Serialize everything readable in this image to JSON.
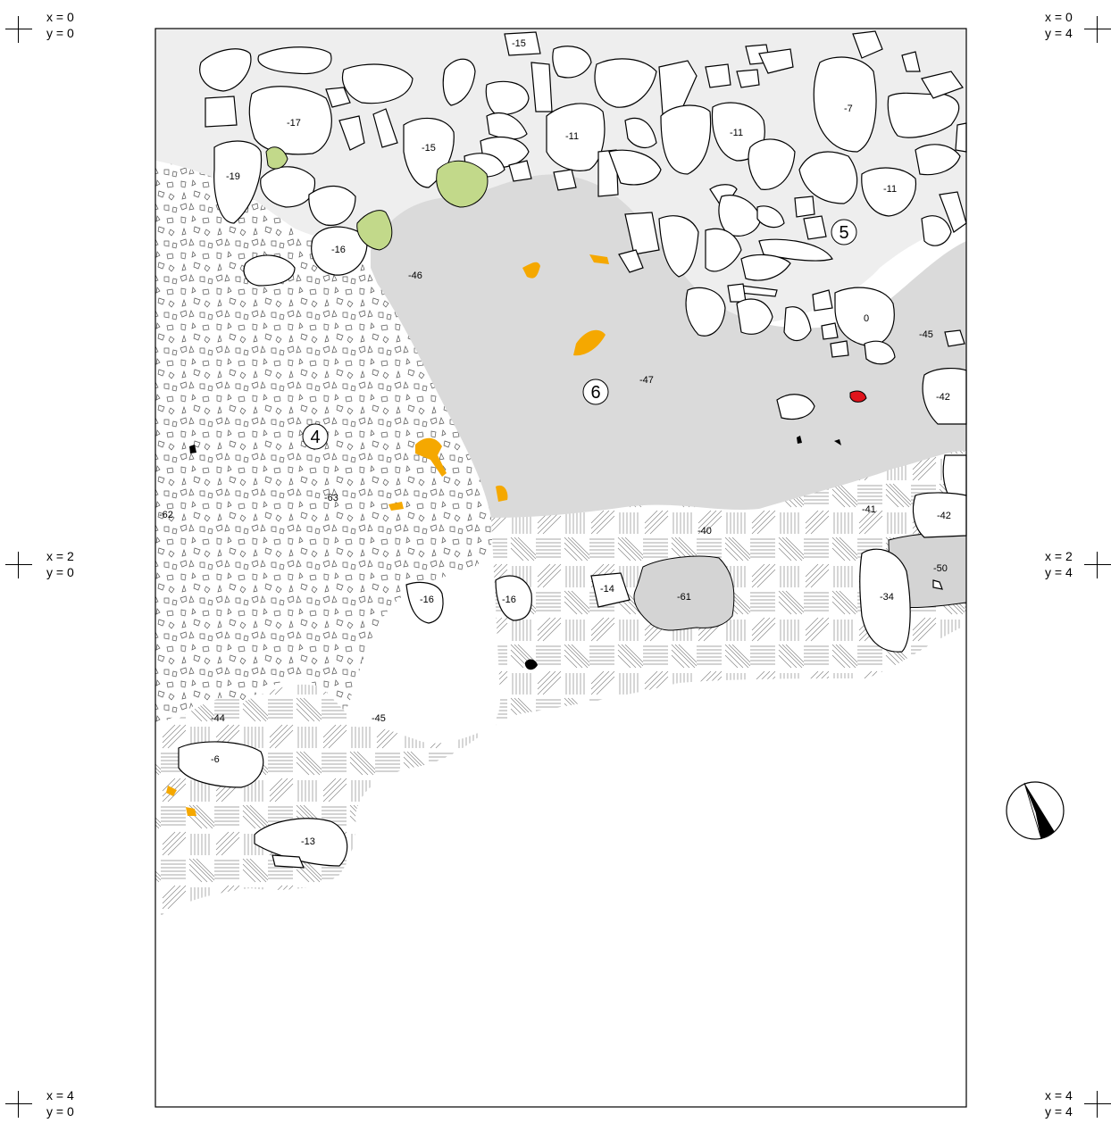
{
  "corners": [
    {
      "id": "tl",
      "x": "x = 0",
      "y": "y = 0"
    },
    {
      "id": "tr",
      "x": "x = 0",
      "y": "y = 4"
    },
    {
      "id": "ml",
      "x": "x = 2",
      "y": "y = 0"
    },
    {
      "id": "mr",
      "x": "x = 2",
      "y": "y = 4"
    },
    {
      "id": "bl",
      "x": "x = 4",
      "y": "y = 0"
    },
    {
      "id": "br",
      "x": "x = 4",
      "y": "y = 4"
    }
  ],
  "units": [
    "4",
    "5",
    "6"
  ],
  "elevations": [
    "-15",
    "-17",
    "-15",
    "-11",
    "-11",
    "-7",
    "-11",
    "-19",
    "-16",
    "-46",
    "0",
    "-45",
    "-47",
    "-42",
    "-41",
    "-42",
    "-40",
    "-62",
    "-63",
    "-50",
    "-16",
    "-16",
    "-14",
    "-61",
    "-34",
    "-44",
    "-45",
    "-6",
    "-13"
  ],
  "colors": {
    "stone_fill": "#ffffff",
    "light_area": "#eeeeee",
    "mid_area": "#dadada",
    "dark_area": "#d4d4d4",
    "ochre": "#f5a800",
    "green": "#c2d98a",
    "red": "#e0141c"
  },
  "north_arrow_icon": "north-arrow-icon"
}
